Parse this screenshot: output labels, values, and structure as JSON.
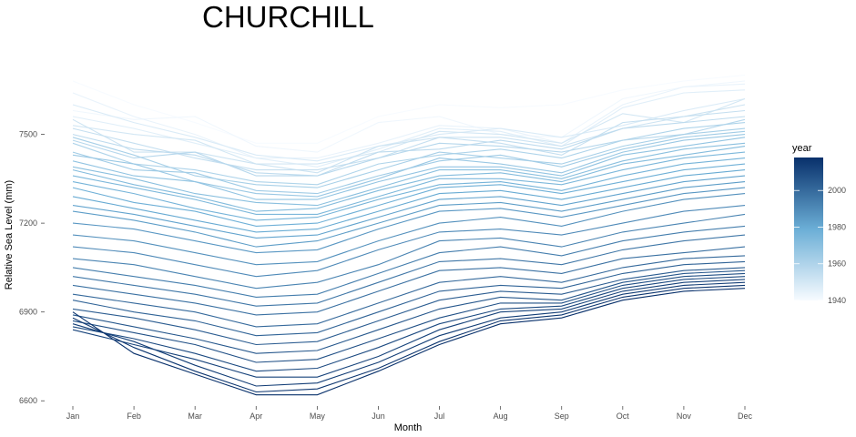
{
  "chart_data": {
    "type": "line",
    "title": "CHURCHILL",
    "xlabel": "Month",
    "ylabel": "Relative Sea Level (mm)",
    "categories": [
      "Jan",
      "Feb",
      "Mar",
      "Apr",
      "May",
      "Jun",
      "Jul",
      "Aug",
      "Sep",
      "Oct",
      "Nov",
      "Dec"
    ],
    "ylim": [
      6570,
      7800
    ],
    "yticks": [
      6600,
      6900,
      7200,
      7500
    ],
    "ytick_labels": [
      "6600",
      "6900",
      "7200",
      "7500"
    ],
    "grid": false,
    "color_scale": {
      "title": "year",
      "min": 1940,
      "max": 2018,
      "ticks": [
        1940,
        1960,
        1980,
        2000
      ],
      "tick_labels": [
        "1940",
        "1960",
        "1980",
        "2000"
      ],
      "low_color": "#f7fbff",
      "mid_color": "#6baed6",
      "high_color": "#08306b",
      "placement": "right"
    },
    "series": [
      {
        "year": 1940,
        "values": [
          7680,
          7600,
          7540,
          7470,
          7470,
          7560,
          7600,
          7590,
          7600,
          7650,
          7680,
          7700
        ]
      },
      {
        "year": 1942,
        "values": [
          7580,
          7550,
          7560,
          7460,
          7440,
          7540,
          7560,
          7500,
          7490,
          7620,
          7660,
          7680
        ]
      },
      {
        "year": 1944,
        "values": [
          7640,
          7560,
          7500,
          7420,
          7420,
          7470,
          7530,
          7520,
          7470,
          7600,
          7660,
          7670
        ]
      },
      {
        "year": 1946,
        "values": [
          7560,
          7520,
          7470,
          7420,
          7390,
          7450,
          7520,
          7510,
          7460,
          7590,
          7640,
          7650
        ]
      },
      {
        "year": 1948,
        "values": [
          7600,
          7540,
          7490,
          7430,
          7410,
          7460,
          7500,
          7520,
          7490,
          7530,
          7580,
          7620
        ]
      },
      {
        "year": 1950,
        "values": [
          7530,
          7500,
          7480,
          7400,
          7400,
          7440,
          7510,
          7500,
          7470,
          7570,
          7540,
          7620
        ]
      },
      {
        "year": 1952,
        "values": [
          7550,
          7440,
          7440,
          7400,
          7370,
          7460,
          7490,
          7490,
          7460,
          7520,
          7560,
          7600
        ]
      },
      {
        "year": 1954,
        "values": [
          7520,
          7470,
          7420,
          7380,
          7380,
          7420,
          7490,
          7470,
          7430,
          7540,
          7560,
          7580
        ]
      },
      {
        "year": 1956,
        "values": [
          7500,
          7450,
          7430,
          7370,
          7360,
          7440,
          7450,
          7480,
          7450,
          7520,
          7540,
          7560
        ]
      },
      {
        "year": 1958,
        "values": [
          7480,
          7420,
          7440,
          7360,
          7360,
          7420,
          7470,
          7460,
          7440,
          7480,
          7500,
          7550
        ]
      },
      {
        "year": 1960,
        "values": [
          7470,
          7400,
          7380,
          7340,
          7330,
          7400,
          7430,
          7450,
          7420,
          7480,
          7520,
          7540
        ]
      },
      {
        "year": 1962,
        "values": [
          7490,
          7430,
          7360,
          7330,
          7320,
          7380,
          7440,
          7420,
          7400,
          7460,
          7500,
          7520
        ]
      },
      {
        "year": 1964,
        "values": [
          7440,
          7380,
          7370,
          7310,
          7300,
          7360,
          7410,
          7430,
          7390,
          7450,
          7490,
          7510
        ]
      },
      {
        "year": 1966,
        "values": [
          7430,
          7400,
          7340,
          7300,
          7290,
          7350,
          7420,
          7400,
          7370,
          7440,
          7480,
          7500
        ]
      },
      {
        "year": 1968,
        "values": [
          7410,
          7360,
          7340,
          7280,
          7280,
          7340,
          7390,
          7390,
          7360,
          7430,
          7460,
          7490
        ]
      },
      {
        "year": 1970,
        "values": [
          7390,
          7350,
          7300,
          7270,
          7260,
          7320,
          7380,
          7380,
          7350,
          7410,
          7450,
          7470
        ]
      },
      {
        "year": 1972,
        "values": [
          7380,
          7330,
          7290,
          7240,
          7250,
          7310,
          7360,
          7370,
          7340,
          7400,
          7430,
          7460
        ]
      },
      {
        "year": 1974,
        "values": [
          7360,
          7320,
          7280,
          7230,
          7230,
          7290,
          7350,
          7350,
          7330,
          7380,
          7420,
          7440
        ]
      },
      {
        "year": 1976,
        "values": [
          7340,
          7300,
          7250,
          7210,
          7220,
          7280,
          7330,
          7340,
          7310,
          7360,
          7400,
          7420
        ]
      },
      {
        "year": 1978,
        "values": [
          7320,
          7270,
          7240,
          7190,
          7200,
          7260,
          7320,
          7330,
          7300,
          7340,
          7380,
          7400
        ]
      },
      {
        "year": 1980,
        "values": [
          7290,
          7250,
          7210,
          7170,
          7180,
          7240,
          7300,
          7310,
          7280,
          7320,
          7360,
          7380
        ]
      },
      {
        "year": 1982,
        "values": [
          7260,
          7230,
          7190,
          7150,
          7160,
          7220,
          7280,
          7290,
          7260,
          7300,
          7340,
          7360
        ]
      },
      {
        "year": 1984,
        "values": [
          7240,
          7210,
          7170,
          7120,
          7140,
          7200,
          7260,
          7270,
          7240,
          7280,
          7320,
          7340
        ]
      },
      {
        "year": 1986,
        "values": [
          7200,
          7180,
          7140,
          7100,
          7110,
          7180,
          7240,
          7250,
          7220,
          7260,
          7300,
          7320
        ]
      },
      {
        "year": 1988,
        "values": [
          7160,
          7140,
          7100,
          7060,
          7070,
          7140,
          7200,
          7220,
          7190,
          7240,
          7280,
          7300
        ]
      },
      {
        "year": 1990,
        "values": [
          7120,
          7100,
          7060,
          7020,
          7040,
          7110,
          7170,
          7180,
          7160,
          7200,
          7240,
          7260
        ]
      },
      {
        "year": 1992,
        "values": [
          7080,
          7060,
          7020,
          6980,
          7000,
          7060,
          7140,
          7150,
          7120,
          7170,
          7200,
          7230
        ]
      },
      {
        "year": 1994,
        "values": [
          7050,
          7020,
          6990,
          6950,
          6960,
          7030,
          7100,
          7120,
          7090,
          7140,
          7170,
          7190
        ]
      },
      {
        "year": 1996,
        "values": [
          7020,
          6990,
          6960,
          6920,
          6930,
          7000,
          7070,
          7080,
          7060,
          7110,
          7140,
          7160
        ]
      },
      {
        "year": 1998,
        "values": [
          6990,
          6960,
          6930,
          6890,
          6900,
          6970,
          7040,
          7050,
          7030,
          7080,
          7100,
          7120
        ]
      },
      {
        "year": 2000,
        "values": [
          6960,
          6930,
          6900,
          6850,
          6860,
          6930,
          7000,
          7020,
          7000,
          7050,
          7080,
          7090
        ]
      },
      {
        "year": 2002,
        "values": [
          6940,
          6900,
          6870,
          6820,
          6830,
          6900,
          6970,
          6990,
          6980,
          7030,
          7060,
          7070
        ]
      },
      {
        "year": 2004,
        "values": [
          6910,
          6880,
          6840,
          6790,
          6800,
          6870,
          6940,
          6970,
          6960,
          7010,
          7040,
          7050
        ]
      },
      {
        "year": 2006,
        "values": [
          6890,
          6850,
          6810,
          6760,
          6770,
          6840,
          6910,
          6950,
          6940,
          7000,
          7030,
          7040
        ]
      },
      {
        "year": 2008,
        "values": [
          6870,
          6830,
          6790,
          6730,
          6740,
          6810,
          6880,
          6930,
          6930,
          6990,
          7020,
          7030
        ]
      },
      {
        "year": 2010,
        "values": [
          6850,
          6810,
          6760,
          6700,
          6710,
          6780,
          6860,
          6910,
          6920,
          6980,
          7010,
          7020
        ]
      },
      {
        "year": 2012,
        "values": [
          6840,
          6790,
          6740,
          6680,
          6680,
          6750,
          6840,
          6900,
          6910,
          6970,
          7000,
          7010
        ]
      },
      {
        "year": 2014,
        "values": [
          6860,
          6800,
          6720,
          6650,
          6660,
          6730,
          6820,
          6880,
          6900,
          6960,
          6990,
          7000
        ]
      },
      {
        "year": 2016,
        "values": [
          6880,
          6780,
          6700,
          6630,
          6640,
          6710,
          6800,
          6870,
          6890,
          6950,
          6980,
          6990
        ]
      },
      {
        "year": 2018,
        "values": [
          6900,
          6760,
          6690,
          6620,
          6620,
          6700,
          6790,
          6860,
          6880,
          6940,
          6970,
          6980
        ]
      }
    ]
  }
}
